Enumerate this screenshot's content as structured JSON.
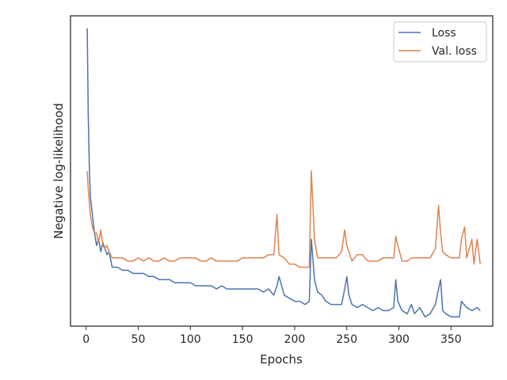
{
  "chart_data": {
    "type": "line",
    "title": "",
    "xlabel": "Epochs",
    "ylabel": "Negative log-likelihood",
    "xlim": [
      -15,
      390
    ],
    "ylim": [
      0,
      100
    ],
    "xticks": [
      0,
      50,
      100,
      150,
      200,
      250,
      300,
      350
    ],
    "yticks_visible": false,
    "grid": false,
    "legend_position": "top-right",
    "series": [
      {
        "name": "Loss",
        "color": "#4c72b0",
        "points": [
          [
            1,
            96
          ],
          [
            2,
            68
          ],
          [
            3,
            52
          ],
          [
            4,
            42
          ],
          [
            6,
            36
          ],
          [
            8,
            30
          ],
          [
            10,
            26
          ],
          [
            12,
            28
          ],
          [
            14,
            24
          ],
          [
            16,
            27
          ],
          [
            18,
            25
          ],
          [
            20,
            23
          ],
          [
            22,
            24
          ],
          [
            25,
            19
          ],
          [
            30,
            19
          ],
          [
            35,
            18
          ],
          [
            40,
            18
          ],
          [
            45,
            17
          ],
          [
            50,
            17
          ],
          [
            55,
            17
          ],
          [
            60,
            16
          ],
          [
            65,
            16
          ],
          [
            70,
            15
          ],
          [
            75,
            15
          ],
          [
            80,
            15
          ],
          [
            85,
            14
          ],
          [
            90,
            14
          ],
          [
            95,
            14
          ],
          [
            100,
            14
          ],
          [
            105,
            13
          ],
          [
            110,
            13
          ],
          [
            115,
            13
          ],
          [
            120,
            13
          ],
          [
            125,
            12
          ],
          [
            130,
            13
          ],
          [
            135,
            12
          ],
          [
            140,
            12
          ],
          [
            145,
            12
          ],
          [
            150,
            12
          ],
          [
            155,
            12
          ],
          [
            160,
            12
          ],
          [
            165,
            12
          ],
          [
            170,
            11
          ],
          [
            175,
            12
          ],
          [
            180,
            10
          ],
          [
            183,
            13
          ],
          [
            185,
            16
          ],
          [
            190,
            10
          ],
          [
            195,
            9
          ],
          [
            200,
            8
          ],
          [
            205,
            8
          ],
          [
            210,
            7
          ],
          [
            214,
            8
          ],
          [
            216,
            28
          ],
          [
            219,
            15
          ],
          [
            222,
            11
          ],
          [
            226,
            10
          ],
          [
            230,
            8
          ],
          [
            235,
            7
          ],
          [
            240,
            7
          ],
          [
            245,
            7
          ],
          [
            248,
            12
          ],
          [
            250,
            16
          ],
          [
            252,
            10
          ],
          [
            255,
            7
          ],
          [
            260,
            6
          ],
          [
            265,
            7
          ],
          [
            270,
            6
          ],
          [
            275,
            5
          ],
          [
            280,
            6
          ],
          [
            285,
            5
          ],
          [
            290,
            5
          ],
          [
            295,
            6
          ],
          [
            297,
            15
          ],
          [
            299,
            8
          ],
          [
            303,
            5
          ],
          [
            308,
            4
          ],
          [
            312,
            7
          ],
          [
            315,
            4
          ],
          [
            320,
            6
          ],
          [
            325,
            3
          ],
          [
            330,
            4
          ],
          [
            335,
            7
          ],
          [
            338,
            12
          ],
          [
            340,
            15
          ],
          [
            342,
            5
          ],
          [
            345,
            4
          ],
          [
            350,
            3
          ],
          [
            355,
            3
          ],
          [
            358,
            3
          ],
          [
            360,
            8
          ],
          [
            365,
            6
          ],
          [
            370,
            5
          ],
          [
            375,
            6
          ],
          [
            378,
            5
          ]
        ]
      },
      {
        "name": "Val. loss",
        "color": "#dd8452",
        "points": [
          [
            1,
            50
          ],
          [
            2,
            44
          ],
          [
            3,
            40
          ],
          [
            4,
            36
          ],
          [
            6,
            32
          ],
          [
            8,
            30
          ],
          [
            10,
            30
          ],
          [
            12,
            27
          ],
          [
            14,
            31
          ],
          [
            16,
            26
          ],
          [
            18,
            25
          ],
          [
            20,
            26
          ],
          [
            22,
            24
          ],
          [
            25,
            22
          ],
          [
            30,
            22
          ],
          [
            35,
            22
          ],
          [
            40,
            21
          ],
          [
            45,
            21
          ],
          [
            50,
            22
          ],
          [
            55,
            21
          ],
          [
            60,
            22
          ],
          [
            65,
            21
          ],
          [
            70,
            21
          ],
          [
            75,
            22
          ],
          [
            80,
            21
          ],
          [
            85,
            21
          ],
          [
            90,
            22
          ],
          [
            95,
            22
          ],
          [
            100,
            22
          ],
          [
            105,
            22
          ],
          [
            110,
            21
          ],
          [
            115,
            21
          ],
          [
            120,
            22
          ],
          [
            125,
            21
          ],
          [
            130,
            21
          ],
          [
            135,
            21
          ],
          [
            140,
            21
          ],
          [
            145,
            21
          ],
          [
            150,
            22
          ],
          [
            155,
            22
          ],
          [
            160,
            22
          ],
          [
            165,
            22
          ],
          [
            170,
            22
          ],
          [
            175,
            23
          ],
          [
            180,
            23
          ],
          [
            183,
            36
          ],
          [
            185,
            23
          ],
          [
            190,
            22
          ],
          [
            195,
            20
          ],
          [
            200,
            20
          ],
          [
            205,
            19
          ],
          [
            210,
            19
          ],
          [
            214,
            19
          ],
          [
            216,
            50
          ],
          [
            219,
            28
          ],
          [
            222,
            22
          ],
          [
            226,
            22
          ],
          [
            230,
            22
          ],
          [
            235,
            22
          ],
          [
            240,
            22
          ],
          [
            245,
            24
          ],
          [
            248,
            31
          ],
          [
            250,
            26
          ],
          [
            252,
            24
          ],
          [
            255,
            21
          ],
          [
            260,
            23
          ],
          [
            265,
            23
          ],
          [
            270,
            21
          ],
          [
            275,
            21
          ],
          [
            280,
            21
          ],
          [
            285,
            22
          ],
          [
            290,
            22
          ],
          [
            295,
            22
          ],
          [
            297,
            29
          ],
          [
            299,
            26
          ],
          [
            303,
            21
          ],
          [
            308,
            21
          ],
          [
            312,
            22
          ],
          [
            315,
            22
          ],
          [
            320,
            22
          ],
          [
            325,
            22
          ],
          [
            330,
            22
          ],
          [
            335,
            25
          ],
          [
            338,
            39
          ],
          [
            340,
            30
          ],
          [
            342,
            24
          ],
          [
            345,
            23
          ],
          [
            350,
            22
          ],
          [
            355,
            22
          ],
          [
            358,
            22
          ],
          [
            360,
            28
          ],
          [
            363,
            32
          ],
          [
            365,
            22
          ],
          [
            370,
            28
          ],
          [
            372,
            20
          ],
          [
            375,
            28
          ],
          [
            378,
            20
          ]
        ]
      }
    ]
  }
}
